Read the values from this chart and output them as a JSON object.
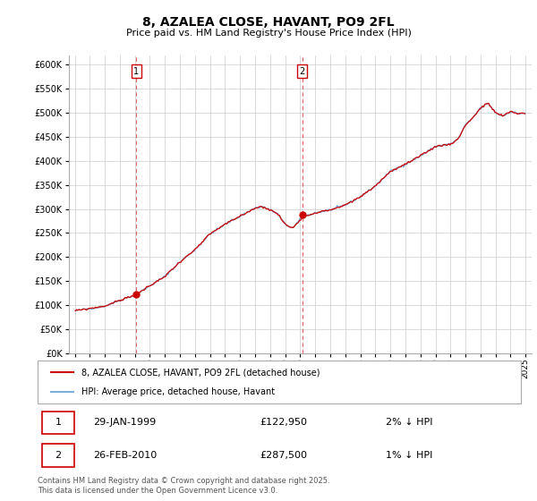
{
  "title": "8, AZALEA CLOSE, HAVANT, PO9 2FL",
  "subtitle": "Price paid vs. HM Land Registry's House Price Index (HPI)",
  "red_label": "8, AZALEA CLOSE, HAVANT, PO9 2FL (detached house)",
  "blue_label": "HPI: Average price, detached house, Havant",
  "footnote": "Contains HM Land Registry data © Crown copyright and database right 2025.\nThis data is licensed under the Open Government Licence v3.0.",
  "sale1_label": "29-JAN-1999",
  "sale1_price": "£122,950",
  "sale1_hpi": "2% ↓ HPI",
  "sale1_x": 1999.08,
  "sale1_y": 122950,
  "sale2_label": "26-FEB-2010",
  "sale2_price": "£287,500",
  "sale2_hpi": "1% ↓ HPI",
  "sale2_x": 2010.13,
  "sale2_y": 287500,
  "ylim": [
    0,
    620000
  ],
  "xlim_left": 1994.6,
  "xlim_right": 2025.4,
  "ytick_step": 50000,
  "background_color": "#ffffff",
  "grid_color": "#cccccc",
  "red_color": "#cc0000",
  "blue_color": "#7aaddb",
  "anchor_years": [
    1995,
    1996,
    1997,
    1998,
    1999.08,
    2000,
    2001,
    2002,
    2003,
    2004,
    2005,
    2006,
    2007,
    2007.5,
    2008,
    2008.5,
    2009.0,
    2009.5,
    2010.13,
    2011,
    2012,
    2013,
    2014,
    2015,
    2016,
    2017,
    2018,
    2019,
    2020,
    2020.5,
    2021,
    2021.5,
    2022,
    2022.5,
    2023,
    2023.5,
    2024,
    2024.5,
    2025
  ],
  "anchor_hpi": [
    88000,
    93000,
    98000,
    110000,
    122000,
    140000,
    160000,
    190000,
    215000,
    248000,
    268000,
    285000,
    302000,
    305000,
    298000,
    290000,
    268000,
    260000,
    283000,
    292000,
    298000,
    308000,
    325000,
    348000,
    378000,
    393000,
    410000,
    430000,
    435000,
    445000,
    475000,
    490000,
    510000,
    520000,
    500000,
    493000,
    503000,
    498000,
    500000
  ],
  "hpi_noise_scale": 1200,
  "red_noise_scale": 1000,
  "hpi_seed": 42,
  "red_seed": 99
}
